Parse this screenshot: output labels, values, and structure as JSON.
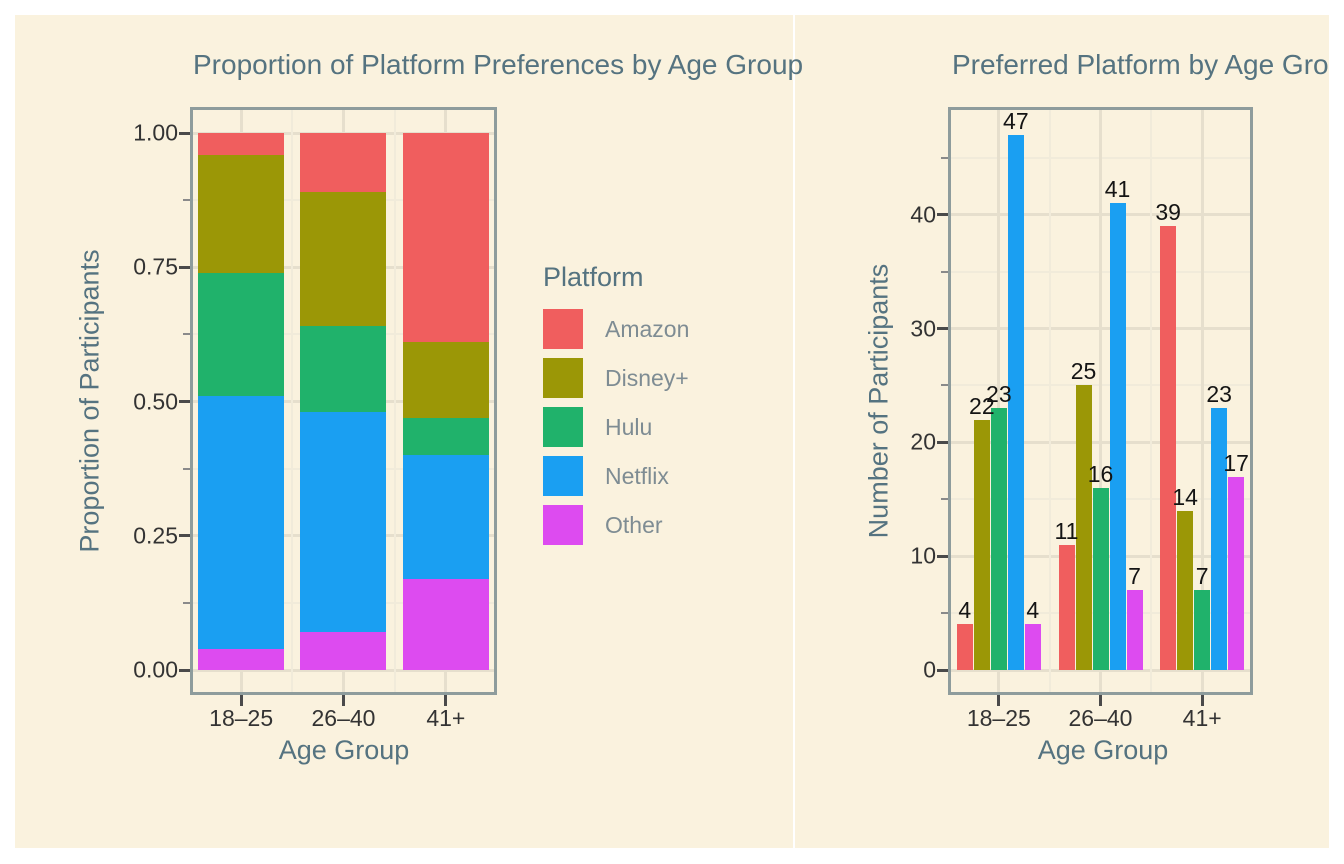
{
  "colors": {
    "figure_background": "#FAF2DE",
    "page_background": "#ffffff",
    "grid_major": "#E6DFCD",
    "grid_minor": "#F1EBDA",
    "panel_border": "#8E9C9C",
    "title_text": "#557380",
    "tick_text": "#333333",
    "legend_label_text": "#7E8C93",
    "bar_label_text": "#141414"
  },
  "legend": {
    "title": "Platform",
    "items": [
      {
        "label": "Amazon",
        "color": "#F05E5E"
      },
      {
        "label": "Disney+",
        "color": "#9B9706"
      },
      {
        "label": "Hulu",
        "color": "#20B26B"
      },
      {
        "label": "Netflix",
        "color": "#1A9FF2"
      },
      {
        "label": "Other",
        "color": "#DD4BF0"
      }
    ]
  },
  "chart_data": [
    {
      "type": "bar",
      "variant": "stacked",
      "title": "Proportion of Platform Preferences by Age Group",
      "xlabel": "Age Group",
      "ylabel": "Proportion of Participants",
      "categories": [
        "18–25",
        "26–40",
        "41+"
      ],
      "stack_order_bottom_to_top": [
        "Other",
        "Netflix",
        "Hulu",
        "Disney+",
        "Amazon"
      ],
      "series": [
        {
          "name": "Amazon",
          "color": "#F05E5E",
          "values": [
            0.04,
            0.11,
            0.39
          ]
        },
        {
          "name": "Disney+",
          "color": "#9B9706",
          "values": [
            0.22,
            0.25,
            0.14
          ]
        },
        {
          "name": "Hulu",
          "color": "#20B26B",
          "values": [
            0.23,
            0.16,
            0.07
          ]
        },
        {
          "name": "Netflix",
          "color": "#1A9FF2",
          "values": [
            0.47,
            0.41,
            0.23
          ]
        },
        {
          "name": "Other",
          "color": "#DD4BF0",
          "values": [
            0.04,
            0.07,
            0.17
          ]
        }
      ],
      "ylim": [
        0,
        1.0
      ],
      "yticks": [
        0,
        0.25,
        0.5,
        0.75,
        1.0
      ],
      "ytick_labels": [
        "0.00",
        "0.25",
        "0.50",
        "0.75",
        "1.00"
      ],
      "grid": true,
      "legend_position": "right"
    },
    {
      "type": "bar",
      "variant": "grouped",
      "title": "Preferred Platform by Age Group",
      "xlabel": "Age Group",
      "ylabel": "Number of Participants",
      "categories": [
        "18–25",
        "26–40",
        "41+"
      ],
      "series": [
        {
          "name": "Amazon",
          "color": "#F05E5E",
          "values": [
            4,
            11,
            39
          ]
        },
        {
          "name": "Disney+",
          "color": "#9B9706",
          "values": [
            22,
            25,
            14
          ]
        },
        {
          "name": "Hulu",
          "color": "#20B26B",
          "values": [
            23,
            16,
            7
          ]
        },
        {
          "name": "Netflix",
          "color": "#1A9FF2",
          "values": [
            47,
            41,
            23
          ]
        },
        {
          "name": "Other",
          "color": "#DD4BF0",
          "values": [
            4,
            7,
            17
          ]
        }
      ],
      "bar_value_labels": true,
      "ylim": [
        0,
        49.4
      ],
      "yticks": [
        0,
        10,
        20,
        30,
        40
      ],
      "ytick_labels": [
        "0",
        "10",
        "20",
        "30",
        "40"
      ],
      "grid": true
    }
  ]
}
